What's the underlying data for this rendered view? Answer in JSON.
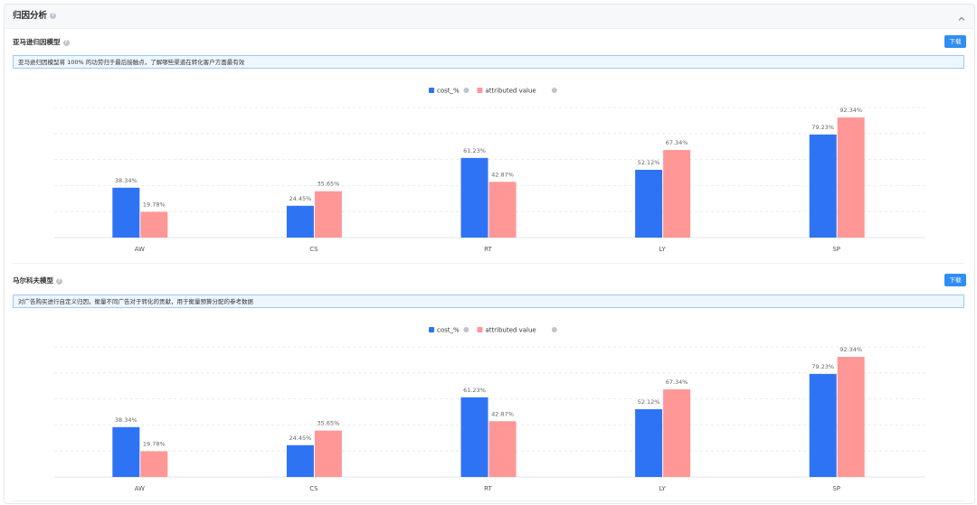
{
  "header": {
    "title": "归因分析"
  },
  "sections": [
    {
      "title": "亚马逊归因模型",
      "download_label": "下载",
      "info": "亚马逊归因模型将 100% 的功劳归于最后接触点，了解哪些渠道在转化客户方面最有效"
    },
    {
      "title": "马尔科夫模型",
      "download_label": "下载",
      "info": "对广告购买进行自定义归因，衡量不同广告对于转化的贡献，用于衡量预算分配的参考数据"
    }
  ],
  "colors": {
    "cost": "#2f73f5",
    "attributed": "#ff9796",
    "download": "#2f8ef4",
    "info_border": "#9ccaf7",
    "info_bg": "#eef6ff"
  },
  "chart_data": [
    {
      "type": "bar",
      "categories": [
        "AW",
        "CS",
        "RT",
        "LY",
        "SP"
      ],
      "series": [
        {
          "name": "cost_%",
          "values": [
            38.34,
            24.45,
            61.23,
            52.12,
            79.23
          ],
          "labels": [
            "38.34%",
            "24.45%",
            "61.23%",
            "52.12%",
            "79.23%"
          ]
        },
        {
          "name": "attributed value",
          "values": [
            19.78,
            35.65,
            42.87,
            67.34,
            92.34
          ],
          "labels": [
            "19.78%",
            "35.65%",
            "42.87%",
            "67.34%",
            "92.34%"
          ]
        }
      ],
      "ylim": [
        0,
        100
      ],
      "grid": true,
      "legend": "top-center"
    },
    {
      "type": "bar",
      "categories": [
        "AW",
        "CS",
        "RT",
        "LY",
        "SP"
      ],
      "series": [
        {
          "name": "cost_%",
          "values": [
            38.34,
            24.45,
            61.23,
            52.12,
            79.23
          ],
          "labels": [
            "38.34%",
            "24.45%",
            "61.23%",
            "52.12%",
            "79.23%"
          ]
        },
        {
          "name": "attributed value",
          "values": [
            19.78,
            35.65,
            42.87,
            67.34,
            92.34
          ],
          "labels": [
            "19.78%",
            "35.65%",
            "42.87%",
            "67.34%",
            "92.34%"
          ]
        }
      ],
      "ylim": [
        0,
        100
      ],
      "grid": true,
      "legend": "top-center"
    }
  ]
}
